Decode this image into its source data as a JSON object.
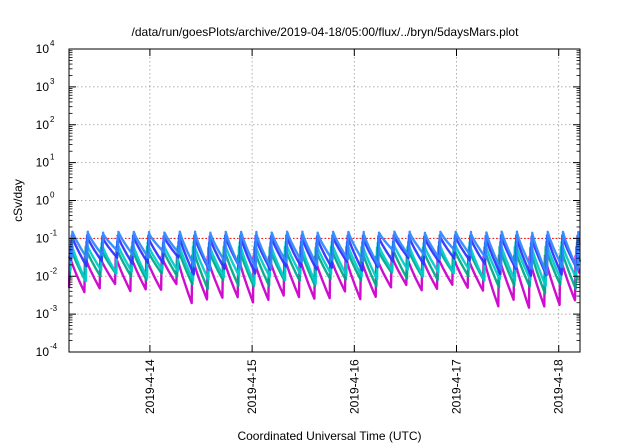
{
  "chart_data": {
    "type": "line",
    "title": "/data/run/goesPlots/archive/2019-04-18/05:00/flux/../bryn/5daysMars.plot",
    "xlabel": "Coordinated Universal Time (UTC)",
    "ylabel": "cSv/day",
    "yscale": "log",
    "ylim": [
      0.0001,
      10000
    ],
    "xlim": [
      "2019-04-13T05:00",
      "2019-04-18T05:00"
    ],
    "grid": true,
    "legend": "none",
    "y_ticks": [
      {
        "base": "10",
        "exp": "-4",
        "value": 0.0001
      },
      {
        "base": "10",
        "exp": "-3",
        "value": 0.001
      },
      {
        "base": "10",
        "exp": "-2",
        "value": 0.01
      },
      {
        "base": "10",
        "exp": "-1",
        "value": 0.1
      },
      {
        "base": "10",
        "exp": "0",
        "value": 1
      },
      {
        "base": "10",
        "exp": "1",
        "value": 10
      },
      {
        "base": "10",
        "exp": "2",
        "value": 100
      },
      {
        "base": "10",
        "exp": "3",
        "value": 1000
      },
      {
        "base": "10",
        "exp": "4",
        "value": 10000
      }
    ],
    "x_ticks": [
      {
        "label": "2019-4-14",
        "value": "2019-04-14T00:00"
      },
      {
        "label": "2019-4-15",
        "value": "2019-04-15T00:00"
      },
      {
        "label": "2019-4-16",
        "value": "2019-04-16T00:00"
      },
      {
        "label": "2019-4-17",
        "value": "2019-04-17T00:00"
      },
      {
        "label": "2019-4-18",
        "value": "2019-04-18T00:00"
      }
    ],
    "reference_line": {
      "value": 0.1,
      "color": "#ff0000",
      "style": "dotted"
    },
    "sawtooth_period_hours": 3.6,
    "series": [
      {
        "color": "#ff00ff",
        "peak_values": [
          0.03,
          0.03,
          0.03,
          0.03,
          0.03
        ],
        "trough_values": [
          0.003,
          0.0015,
          0.002,
          0.003,
          0.0012
        ]
      },
      {
        "color": "#cc00cc",
        "peak_values": [
          0.035,
          0.035,
          0.035,
          0.035,
          0.035
        ],
        "trough_values": [
          0.004,
          0.002,
          0.0025,
          0.004,
          0.0015
        ]
      },
      {
        "color": "#00aa88",
        "peak_values": [
          0.06,
          0.06,
          0.06,
          0.06,
          0.06
        ],
        "trough_values": [
          0.008,
          0.005,
          0.006,
          0.008,
          0.004
        ]
      },
      {
        "color": "#00cccc",
        "peak_values": [
          0.08,
          0.08,
          0.08,
          0.08,
          0.08
        ],
        "trough_values": [
          0.01,
          0.007,
          0.008,
          0.01,
          0.006
        ]
      },
      {
        "color": "#3333ff",
        "peak_values": [
          0.12,
          0.12,
          0.12,
          0.12,
          0.12
        ],
        "trough_values": [
          0.02,
          0.012,
          0.015,
          0.02,
          0.01
        ]
      },
      {
        "color": "#3388ff",
        "peak_values": [
          0.15,
          0.15,
          0.15,
          0.15,
          0.15
        ],
        "trough_values": [
          0.03,
          0.015,
          0.02,
          0.03,
          0.012
        ]
      }
    ]
  }
}
